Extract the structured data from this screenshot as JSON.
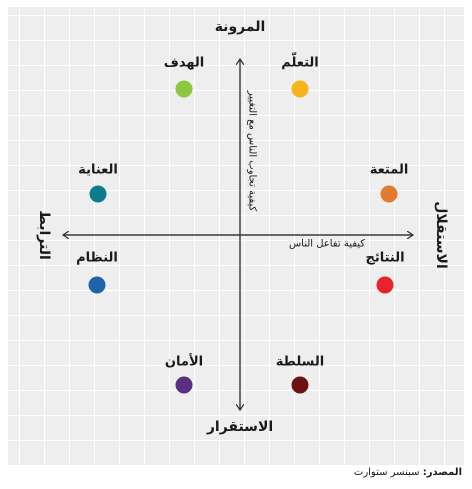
{
  "poles": {
    "top": "المرونة",
    "bottom": "الاستقرار",
    "left": "الترابط",
    "right": "الاستقلال"
  },
  "axis_notes": {
    "horizontal": "كيفية تفاعل الناس",
    "vertical": "كيفية تجاوب الناس مع التغيير"
  },
  "items": [
    {
      "label": "الهدف",
      "color": "#8dc63f"
    },
    {
      "label": "التعلّم",
      "color": "#f5b41c"
    },
    {
      "label": "العناية",
      "color": "#0e7c8c"
    },
    {
      "label": "المتعة",
      "color": "#e07b2f"
    },
    {
      "label": "النظام",
      "color": "#1f63a8"
    },
    {
      "label": "النتائج",
      "color": "#e8232e"
    },
    {
      "label": "الأمان",
      "color": "#5a2f82"
    },
    {
      "label": "السلطة",
      "color": "#6b1212"
    }
  ],
  "source": {
    "prefix": "المصدر:",
    "text": "سبنسر ستوارت"
  }
}
